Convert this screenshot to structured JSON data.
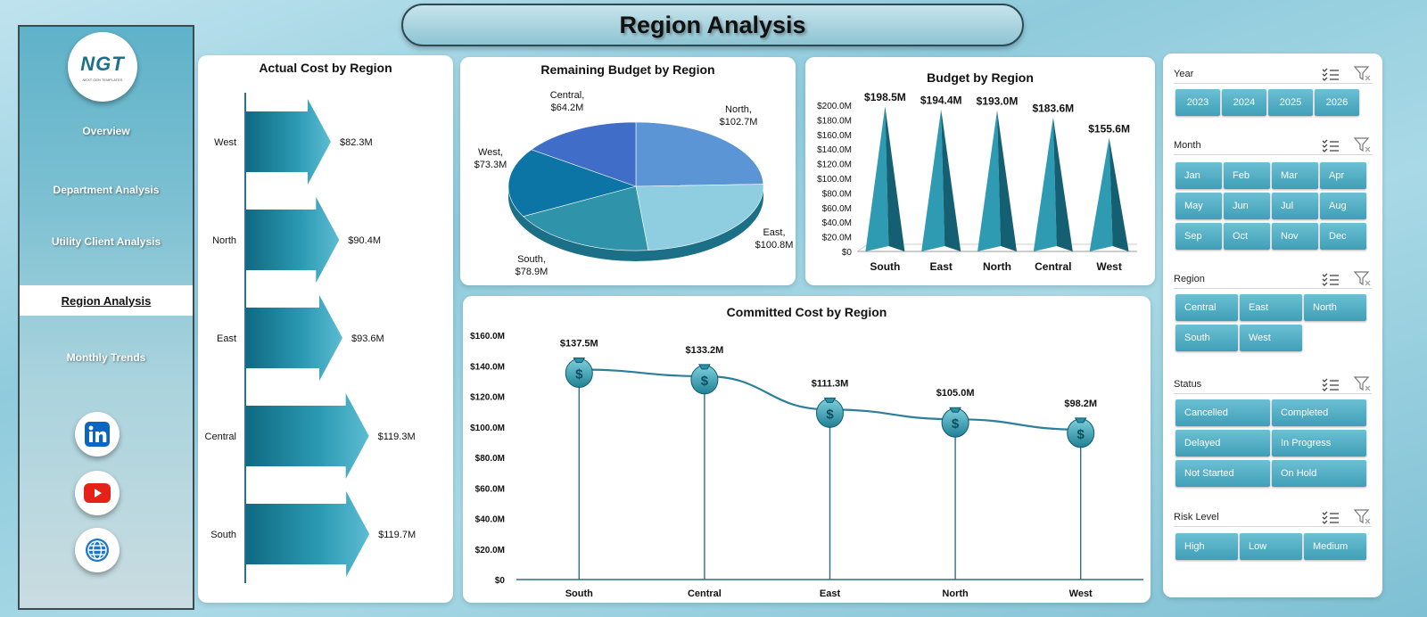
{
  "header": {
    "title": "Region Analysis"
  },
  "sidebar": {
    "logo": {
      "mark": "NGT",
      "sub": "NEXT GEN TEMPLATES"
    },
    "items": [
      {
        "label": "Overview"
      },
      {
        "label": "Department Analysis"
      },
      {
        "label": "Utility Client Analysis"
      },
      {
        "label": "Region Analysis",
        "active": true
      },
      {
        "label": "Monthly Trends"
      }
    ],
    "social": [
      "linkedin-icon",
      "youtube-icon",
      "globe-icon"
    ]
  },
  "charts": {
    "actual_cost": {
      "chart_data": {
        "type": "bar",
        "title": "Actual Cost by Region",
        "categories": [
          "West",
          "North",
          "East",
          "Central",
          "South"
        ],
        "values": [
          82.3,
          90.4,
          93.6,
          119.3,
          119.7
        ],
        "data_labels": [
          "$82.3M",
          "$90.4M",
          "$93.6M",
          "$119.3M",
          "$119.7M"
        ]
      }
    },
    "remaining_budget": {
      "chart_data": {
        "type": "pie",
        "title": "Remaining Budget by Region",
        "categories": [
          "North",
          "East",
          "South",
          "West",
          "Central"
        ],
        "values": [
          102.7,
          100.8,
          78.9,
          73.3,
          64.2
        ],
        "label_names": [
          "North,",
          "East,",
          "South,",
          "West,",
          "Central,"
        ],
        "label_values": [
          "$102.7M",
          "$100.8M",
          "$78.9M",
          "$73.3M",
          "$64.2M"
        ],
        "colors": [
          "#5b95d6",
          "#8fcee0",
          "#2f93aa",
          "#0d74a6",
          "#3f6dc7"
        ]
      }
    },
    "budget": {
      "chart_data": {
        "type": "bar",
        "title": "Budget by Region",
        "categories": [
          "South",
          "East",
          "North",
          "Central",
          "West"
        ],
        "values": [
          198.5,
          194.4,
          193.0,
          183.6,
          155.6
        ],
        "data_labels": [
          "$198.5M",
          "$194.4M",
          "$193.0M",
          "$183.6M",
          "$155.6M"
        ],
        "ylim": [
          0,
          200
        ],
        "yticks": [
          "$0",
          "$20.0M",
          "$40.0M",
          "$60.0M",
          "$80.0M",
          "$100.0M",
          "$120.0M",
          "$140.0M",
          "$160.0M",
          "$180.0M",
          "$200.0M"
        ]
      }
    },
    "committed_cost": {
      "chart_data": {
        "type": "line",
        "title": "Committed Cost by Region",
        "categories": [
          "South",
          "Central",
          "East",
          "North",
          "West"
        ],
        "values": [
          137.5,
          133.2,
          111.3,
          105.0,
          98.2
        ],
        "data_labels": [
          "$137.5M",
          "$133.2M",
          "$111.3M",
          "$105.0M",
          "$98.2M"
        ],
        "ylim": [
          0,
          160
        ],
        "yticks": [
          "$0",
          "$20.0M",
          "$40.0M",
          "$60.0M",
          "$80.0M",
          "$100.0M",
          "$120.0M",
          "$140.0M",
          "$160.0M"
        ],
        "marker": "money-bag-icon"
      }
    }
  },
  "slicers": {
    "year": {
      "label": "Year",
      "options": [
        "2023",
        "2024",
        "2025",
        "2026"
      ]
    },
    "month": {
      "label": "Month",
      "options": [
        "Jan",
        "Feb",
        "Mar",
        "Apr",
        "May",
        "Jun",
        "Jul",
        "Aug",
        "Sep",
        "Oct",
        "Nov",
        "Dec"
      ]
    },
    "region": {
      "label": "Region",
      "options": [
        "Central",
        "East",
        "North",
        "South",
        "West"
      ]
    },
    "status": {
      "label": "Status",
      "options": [
        "Cancelled",
        "Completed",
        "Delayed",
        "In Progress",
        "Not Started",
        "On Hold"
      ]
    },
    "risk": {
      "label": "Risk Level",
      "options": [
        "High",
        "Low",
        "Medium"
      ]
    }
  },
  "colors": {
    "accent": "#3f9fb7",
    "shape": "#1f7f96",
    "axis": "#2c6f86"
  }
}
